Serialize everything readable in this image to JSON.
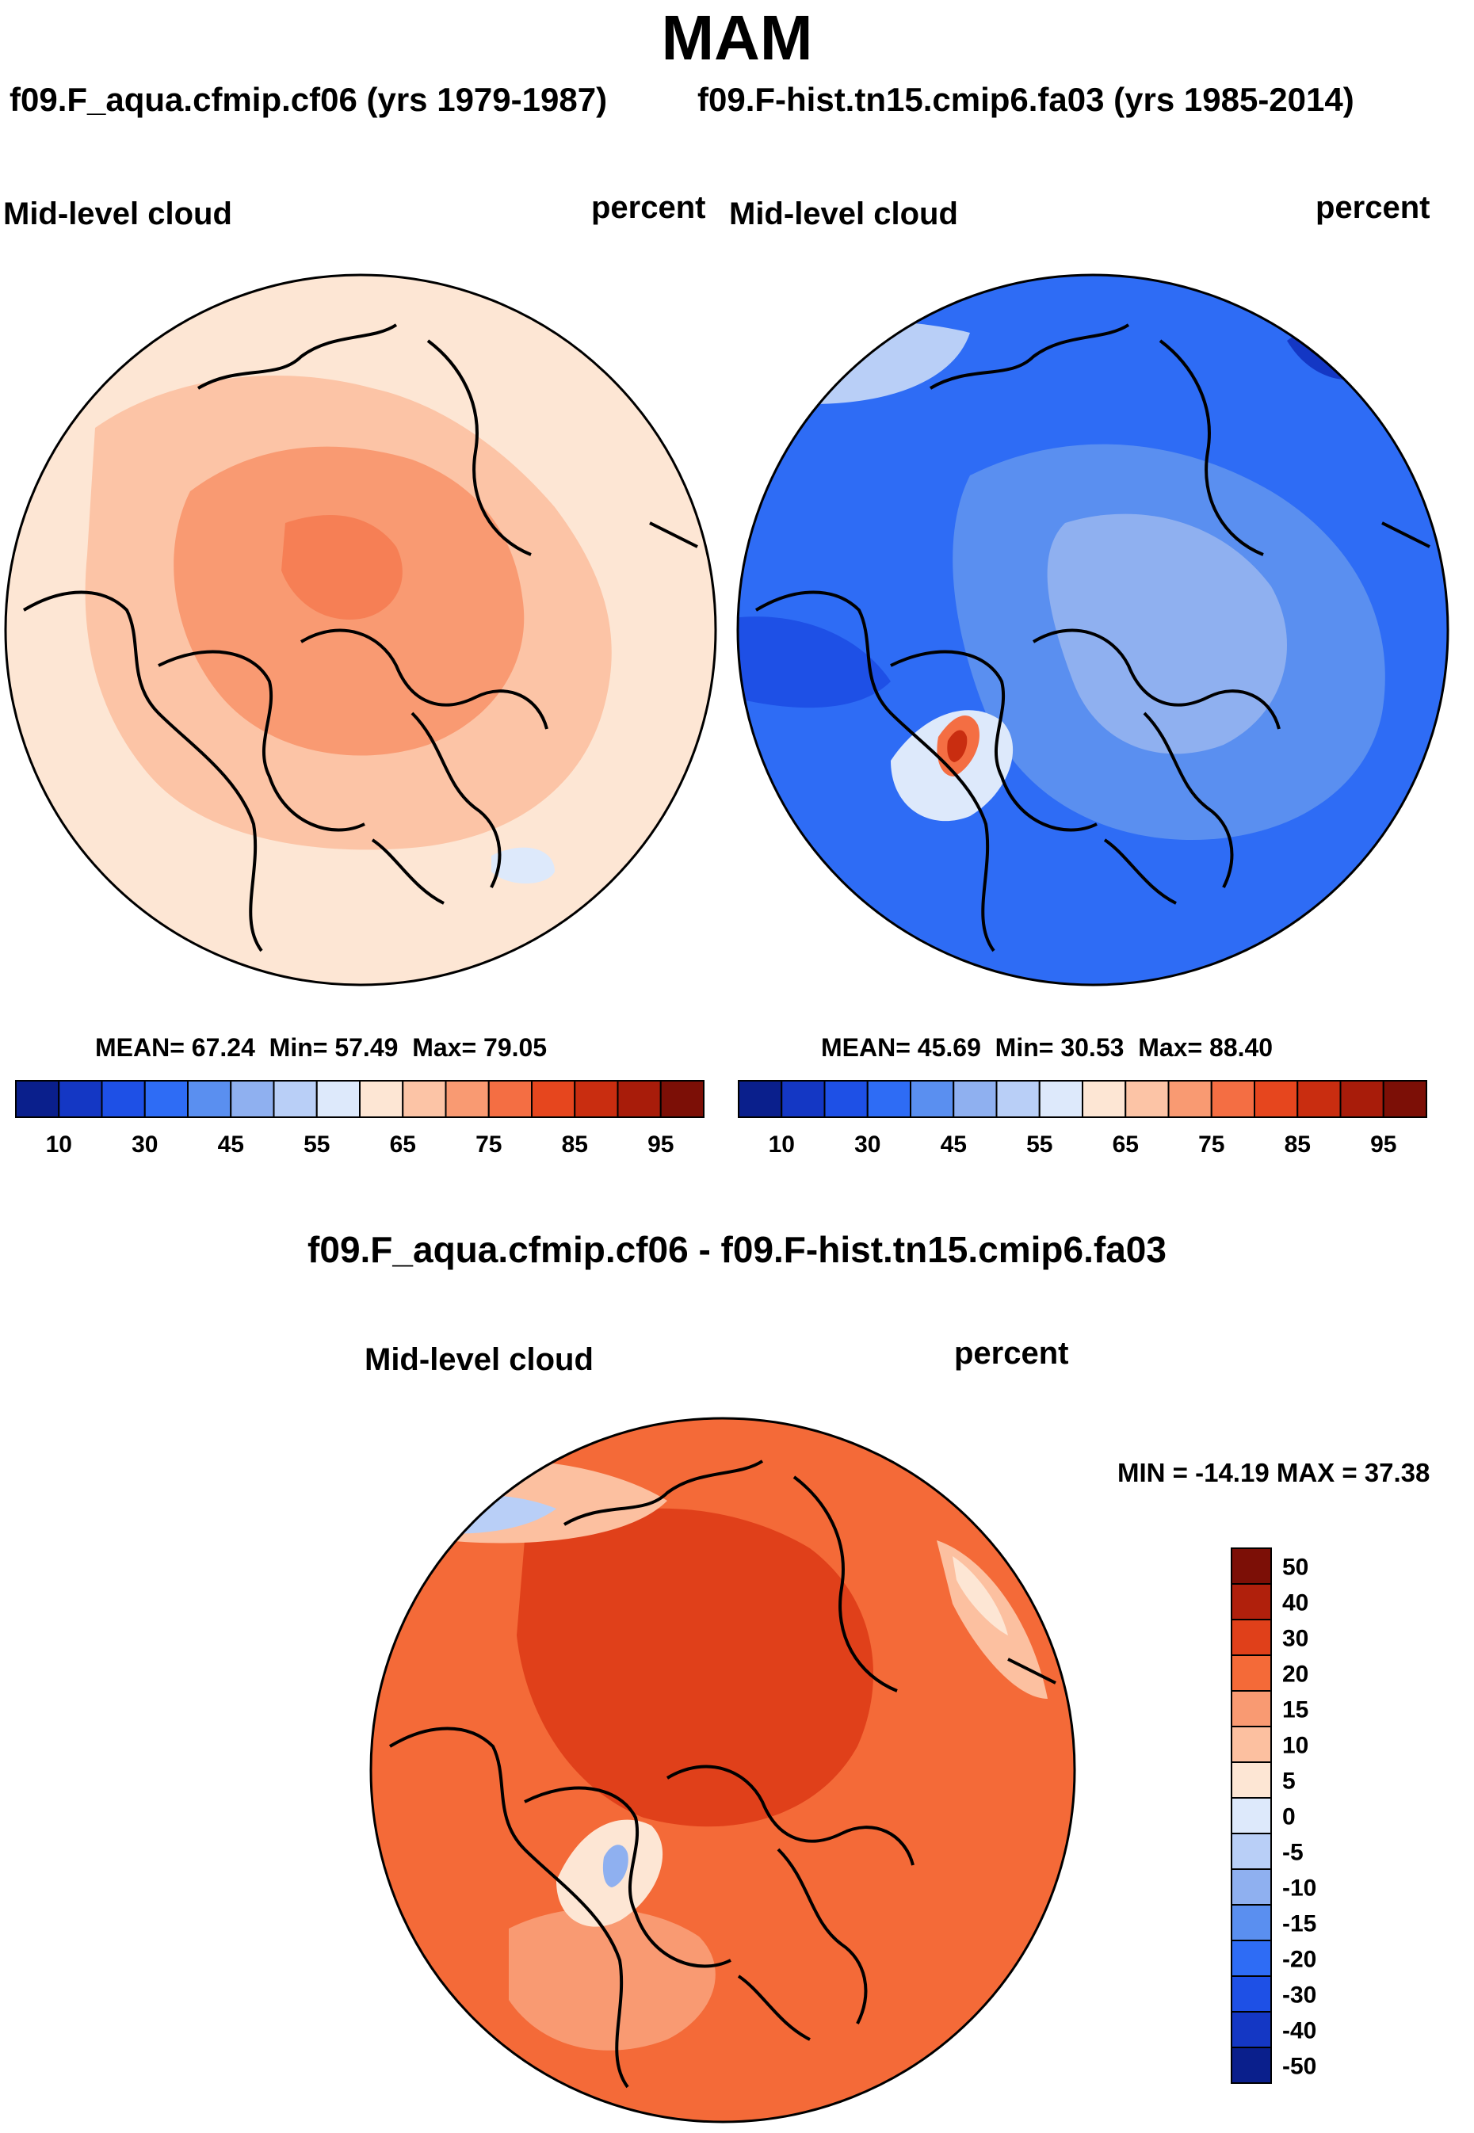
{
  "header": {
    "season": "MAM",
    "left_case": "f09.F_aqua.cfmip.cf06 (yrs 1979-1987)",
    "right_case": "f09.F-hist.tn15.cmip6.fa03 (yrs 1985-2014)",
    "diff_title": "f09.F_aqua.cfmip.cf06 - f09.F-hist.tn15.cmip6.fa03"
  },
  "panels": {
    "left": {
      "variable": "Mid-level cloud",
      "units": "percent",
      "mean_label": "MEAN=",
      "mean": "67.24",
      "min_label": "Min=",
      "min": "57.49",
      "max_label": "Max=",
      "max": "79.05"
    },
    "right": {
      "variable": "Mid-level cloud",
      "units": "percent",
      "mean_label": "MEAN=",
      "mean": "45.69",
      "min_label": "Min=",
      "min": "30.53",
      "max_label": "Max=",
      "max": "88.40"
    },
    "diff": {
      "variable": "Mid-level cloud",
      "units": "percent",
      "minmax_text": "MIN = -14.19 MAX =  37.38"
    }
  },
  "chart_data": [
    {
      "type": "heatmap",
      "title": "f09.F_aqua.cfmip.cf06 (yrs 1979-1987)",
      "projection": "polar stereographic, Northern Hemisphere",
      "variable": "Mid-level cloud",
      "units": "percent",
      "mean": 67.24,
      "min": 57.49,
      "max": 79.05,
      "colorbar_ticks": [
        "10",
        "30",
        "45",
        "55",
        "65",
        "75",
        "85",
        "95"
      ],
      "colorbar_colors": [
        "#0a1f8c",
        "#1437c4",
        "#1e50e6",
        "#2e6cf5",
        "#5a8ff0",
        "#8fb0f0",
        "#b9cff7",
        "#dde9fb",
        "#fde6d4",
        "#fcc4a6",
        "#f99a72",
        "#f46e43",
        "#e6461e",
        "#c92d10",
        "#a81c0a",
        "#7c0f06"
      ],
      "dominant_levels": [
        "65-70",
        "70-75",
        "75-80"
      ]
    },
    {
      "type": "heatmap",
      "title": "f09.F-hist.tn15.cmip6.fa03 (yrs 1985-2014)",
      "projection": "polar stereographic, Northern Hemisphere",
      "variable": "Mid-level cloud",
      "units": "percent",
      "mean": 45.69,
      "min": 30.53,
      "max": 88.4,
      "colorbar_ticks": [
        "10",
        "30",
        "45",
        "55",
        "65",
        "75",
        "85",
        "95"
      ],
      "colorbar_colors": [
        "#0a1f8c",
        "#1437c4",
        "#1e50e6",
        "#2e6cf5",
        "#5a8ff0",
        "#8fb0f0",
        "#b9cff7",
        "#dde9fb",
        "#fde6d4",
        "#fcc4a6",
        "#f99a72",
        "#f46e43",
        "#e6461e",
        "#c92d10",
        "#a81c0a",
        "#7c0f06"
      ],
      "dominant_levels": [
        "35-45",
        "45-55"
      ]
    },
    {
      "type": "heatmap",
      "title": "f09.F_aqua.cfmip.cf06 - f09.F-hist.tn15.cmip6.fa03",
      "projection": "polar stereographic, Northern Hemisphere",
      "variable": "Mid-level cloud",
      "units": "percent",
      "min": -14.19,
      "max": 37.38,
      "colorbar_ticks": [
        "50",
        "40",
        "30",
        "20",
        "15",
        "10",
        "5",
        "0",
        "-5",
        "-10",
        "-15",
        "-20",
        "-30",
        "-40",
        "-50"
      ],
      "colorbar_colors": [
        "#7c0f06",
        "#b0200c",
        "#e0401a",
        "#f46a38",
        "#f99a72",
        "#fcc0a0",
        "#fde6d4",
        "#dde9fb",
        "#b9cff7",
        "#8fb0f0",
        "#5a8ff0",
        "#2e6cf5",
        "#1e50e6",
        "#1437c4",
        "#0a1f8c"
      ],
      "dominant_levels": [
        "20-30",
        "30-40"
      ]
    }
  ]
}
